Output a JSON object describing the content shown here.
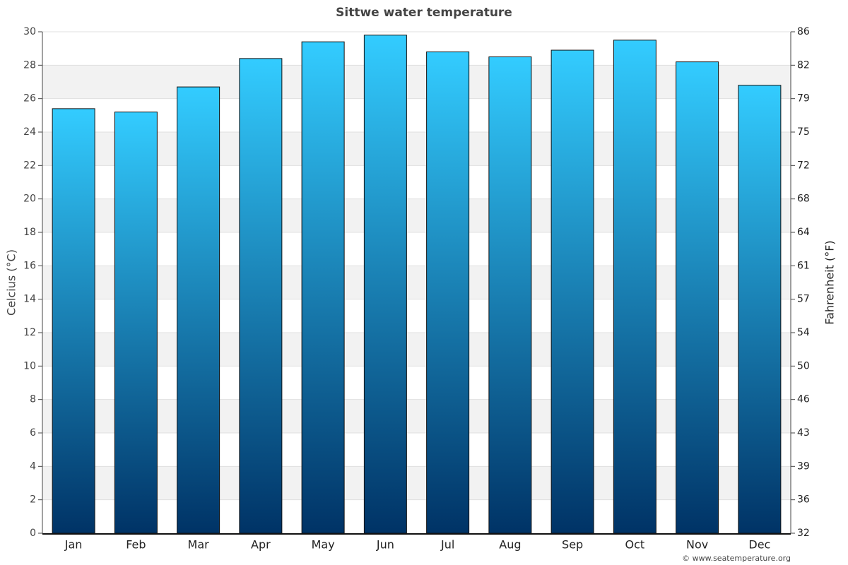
{
  "chart_data": {
    "type": "bar",
    "title": "Sittwe water temperature",
    "categories": [
      "Jan",
      "Feb",
      "Mar",
      "Apr",
      "May",
      "Jun",
      "Jul",
      "Aug",
      "Sep",
      "Oct",
      "Nov",
      "Dec"
    ],
    "values": [
      25.4,
      25.2,
      26.7,
      28.4,
      29.4,
      29.8,
      28.8,
      28.5,
      28.9,
      29.5,
      28.2,
      26.8
    ],
    "color": [
      "#33ccff",
      "#003366"
    ],
    "ylabel": "Celcius (°C)",
    "y2label": "Fahrenheit (°F)",
    "ylim": [
      0,
      30
    ],
    "yticks": [
      0,
      2,
      4,
      6,
      8,
      10,
      12,
      14,
      16,
      18,
      20,
      22,
      24,
      26,
      28,
      30
    ],
    "y2lim": [
      32,
      86
    ],
    "y2ticks": [
      32,
      {
        "value": 35.6,
        "label": "36"
      },
      {
        "value": 39.2,
        "label": "39"
      },
      {
        "value": 42.8,
        "label": "43"
      },
      {
        "value": 46.4,
        "label": "46"
      },
      50,
      {
        "value": 53.6,
        "label": "54"
      },
      {
        "value": 57.2,
        "label": "57"
      },
      {
        "value": 60.8,
        "label": "61"
      },
      {
        "value": 64.4,
        "label": "64"
      },
      68,
      {
        "value": 71.6,
        "label": "72"
      },
      {
        "value": 75.2,
        "label": "75"
      },
      {
        "value": 78.8,
        "label": "79"
      },
      {
        "value": 82.4,
        "label": "82"
      },
      86
    ],
    "grid": true,
    "credit": "© www.seatemperature.org"
  }
}
